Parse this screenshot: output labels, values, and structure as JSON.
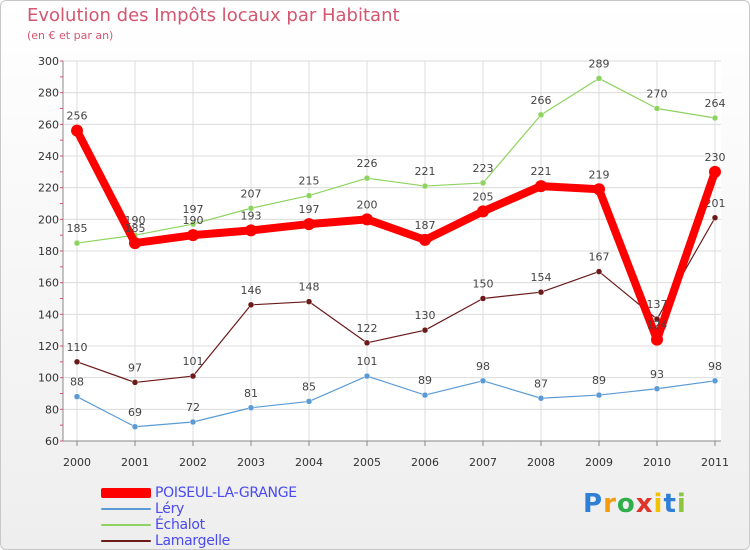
{
  "title": "Evolution des Impôts locaux par Habitant",
  "subtitle": "(en € et par an)",
  "chart_data": {
    "type": "line",
    "title": "Evolution des Impôts locaux par Habitant",
    "ylabel": "(en € et par an)",
    "xlabel": "",
    "ylim": [
      60,
      300
    ],
    "yticks": [
      60,
      80,
      100,
      120,
      140,
      160,
      180,
      200,
      220,
      240,
      260,
      280,
      300
    ],
    "grid": true,
    "categories": [
      "2000",
      "2001",
      "2002",
      "2003",
      "2004",
      "2005",
      "2006",
      "2007",
      "2008",
      "2009",
      "2010",
      "2011"
    ],
    "series": [
      {
        "name": "Lamargelle",
        "color": "#6b1a1a",
        "values": [
          110,
          97,
          101,
          146,
          148,
          122,
          130,
          150,
          154,
          167,
          137,
          201
        ]
      },
      {
        "name": "Échalot",
        "color": "#8dd35f",
        "values": [
          185,
          190,
          197,
          207,
          215,
          226,
          221,
          223,
          266,
          289,
          270,
          264
        ]
      },
      {
        "name": "Léry",
        "color": "#5b9bd5",
        "values": [
          88,
          69,
          72,
          81,
          85,
          101,
          89,
          98,
          87,
          89,
          93,
          98
        ]
      },
      {
        "name": "POISEUL-LA-GRANGE",
        "color": "#ff0000",
        "values": [
          256,
          185,
          190,
          193,
          197,
          200,
          187,
          205,
          221,
          219,
          124,
          230
        ]
      }
    ],
    "legend": [
      "POISEUL-LA-GRANGE",
      "Léry",
      "Échalot",
      "Lamargelle"
    ]
  },
  "legend_items": [
    {
      "label": "POISEUL-LA-GRANGE",
      "color": "#ff0000"
    },
    {
      "label": "Léry",
      "color": "#5b9bd5"
    },
    {
      "label": "Échalot",
      "color": "#8dd35f"
    },
    {
      "label": "Lamargelle",
      "color": "#6b1a1a"
    }
  ],
  "logo": {
    "letters": [
      "P",
      "r",
      "o",
      "x",
      "i",
      "t",
      "i"
    ],
    "colors": [
      "#2f7fd6",
      "#f39c12",
      "#2fae49",
      "#e0342b",
      "#f2c200",
      "#2f7fd6",
      "#8cc63f"
    ]
  }
}
